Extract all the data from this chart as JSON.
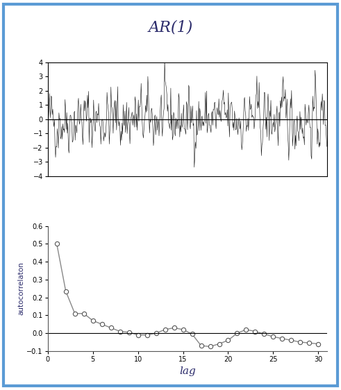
{
  "title": "AR(1)",
  "title_color": "#2B2B6B",
  "title_fontsize": 16,
  "ts_ylim": [
    -4,
    4
  ],
  "ts_yticks": [
    -4,
    -3,
    -2,
    -1,
    0,
    1,
    2,
    3,
    4
  ],
  "ts_n": 500,
  "ts_phi": 0.5,
  "ts_seed": 42,
  "acf_lags": [
    1,
    2,
    3,
    4,
    5,
    6,
    7,
    8,
    9,
    10,
    11,
    12,
    13,
    14,
    15,
    16,
    17,
    18,
    19,
    20,
    21,
    22,
    23,
    24,
    25,
    26,
    27,
    28,
    29,
    30
  ],
  "acf_values": [
    0.5,
    0.235,
    0.11,
    0.11,
    0.07,
    0.05,
    0.03,
    0.01,
    0.005,
    -0.01,
    -0.01,
    0.0,
    0.02,
    0.03,
    0.02,
    -0.005,
    -0.07,
    -0.075,
    -0.06,
    -0.04,
    0.0,
    0.02,
    0.01,
    -0.005,
    -0.02,
    -0.03,
    -0.04,
    -0.05,
    -0.055,
    -0.06
  ],
  "acf_ylim": [
    -0.1,
    0.6
  ],
  "acf_yticks": [
    -0.1,
    0.0,
    0.1,
    0.2,
    0.3,
    0.4,
    0.5,
    0.6
  ],
  "acf_xticks": [
    0,
    5,
    10,
    15,
    20,
    25,
    30
  ],
  "ylabel_acf": "autocorrelaton",
  "xlabel_acf": "lag",
  "line_color": "#888888",
  "marker_color": "white",
  "marker_edge_color": "#555555",
  "background_color": "#ffffff",
  "border_color": "#5B9BD5",
  "ts_line_color": "#111111",
  "ts_linewidth": 0.4,
  "acf_linewidth": 1.0,
  "acf_markersize": 4.5
}
